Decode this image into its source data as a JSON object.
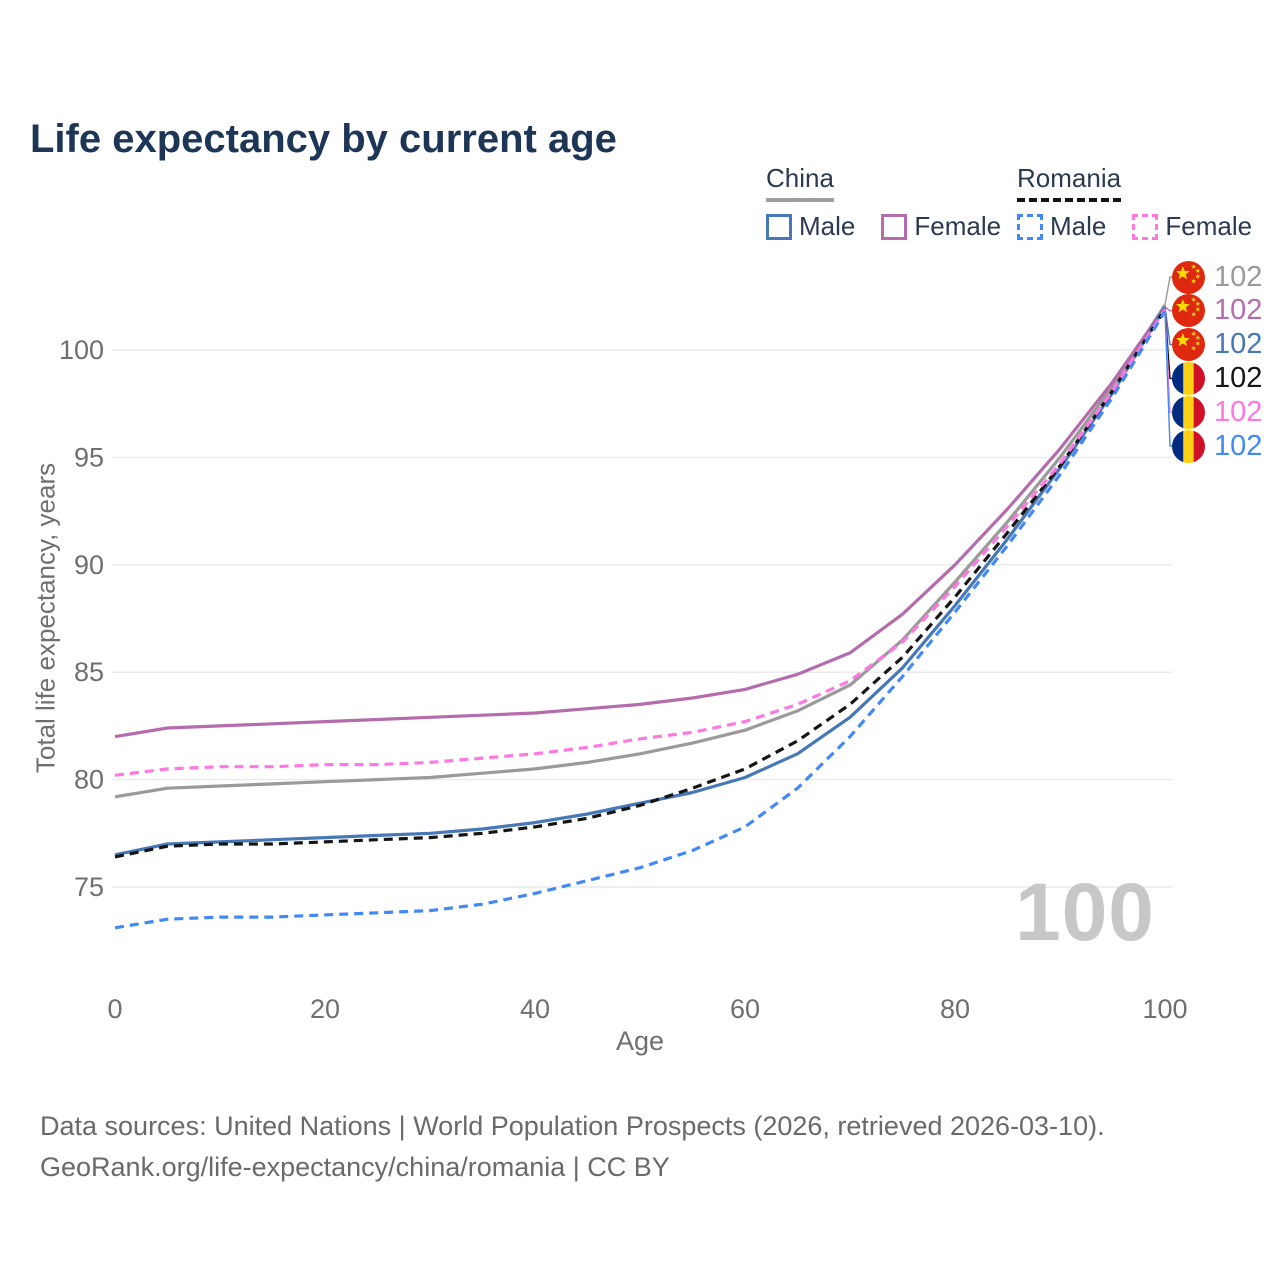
{
  "title": "Life expectancy by current age",
  "watermark_current_age": "100",
  "legend": {
    "groups": [
      {
        "name": "China",
        "line_style": "solid",
        "header_color": "#9e9e9e",
        "items": [
          {
            "label": "Male",
            "color": "#4678b8",
            "dashed": false
          },
          {
            "label": "Female",
            "color": "#b46cac",
            "dashed": false
          }
        ]
      },
      {
        "name": "Romania",
        "line_style": "dashed",
        "header_color": "#141414",
        "items": [
          {
            "label": "Male",
            "color": "#4289f5",
            "dashed": true
          },
          {
            "label": "Female",
            "color": "#ff78e2",
            "dashed": true
          }
        ]
      }
    ]
  },
  "end_labels": [
    {
      "country": "china",
      "value": "102",
      "color": "#9a9a9a"
    },
    {
      "country": "china",
      "value": "102",
      "color": "#b46cac"
    },
    {
      "country": "china",
      "value": "102",
      "color": "#4678b8"
    },
    {
      "country": "romania",
      "value": "102",
      "color": "#151515"
    },
    {
      "country": "romania",
      "value": "102",
      "color": "#ff78e2"
    },
    {
      "country": "romania",
      "value": "102",
      "color": "#4289f5"
    }
  ],
  "chart_data": {
    "type": "line",
    "title": "Life expectancy by current age",
    "xlabel": "Age",
    "ylabel": "Total life expectancy, years",
    "xlim": [
      0,
      100
    ],
    "ylim": [
      72,
      103
    ],
    "xticks": [
      0,
      20,
      40,
      60,
      80,
      100
    ],
    "yticks": [
      75,
      80,
      85,
      90,
      95,
      100
    ],
    "grid": "horizontal",
    "legend_position": "top-right",
    "end_value_label": "102",
    "current_age_indicator": "100",
    "x": [
      0,
      5,
      10,
      15,
      20,
      25,
      30,
      35,
      40,
      45,
      50,
      55,
      60,
      65,
      70,
      75,
      80,
      85,
      90,
      95,
      100
    ],
    "series": [
      {
        "id": "china-total",
        "name": "China",
        "color": "#9a9a9a",
        "dash": "solid",
        "values": [
          79.2,
          79.6,
          79.7,
          79.8,
          79.9,
          80.0,
          80.1,
          80.3,
          80.5,
          80.8,
          81.2,
          81.7,
          82.3,
          83.2,
          84.4,
          86.5,
          89.2,
          92.0,
          95.0,
          98.3,
          102.1
        ]
      },
      {
        "id": "china-female",
        "name": "China Female",
        "color": "#b46cac",
        "dash": "solid",
        "values": [
          82.0,
          82.4,
          82.5,
          82.6,
          82.7,
          82.8,
          82.9,
          83.0,
          83.1,
          83.3,
          83.5,
          83.8,
          84.2,
          84.9,
          85.9,
          87.7,
          90.0,
          92.6,
          95.4,
          98.5,
          102.0
        ]
      },
      {
        "id": "china-male",
        "name": "China Male",
        "color": "#4678b8",
        "dash": "solid",
        "values": [
          76.5,
          77.0,
          77.1,
          77.2,
          77.3,
          77.4,
          77.5,
          77.7,
          78.0,
          78.4,
          78.9,
          79.4,
          80.1,
          81.2,
          82.9,
          85.2,
          88.1,
          91.2,
          94.5,
          98.0,
          102.0
        ]
      },
      {
        "id": "romania-total",
        "name": "Romania",
        "color": "#151515",
        "dash": "dashed",
        "values": [
          76.4,
          76.9,
          77.0,
          77.0,
          77.1,
          77.2,
          77.3,
          77.5,
          77.8,
          78.2,
          78.8,
          79.6,
          80.5,
          81.8,
          83.5,
          85.7,
          88.5,
          91.5,
          94.6,
          98.1,
          101.9
        ]
      },
      {
        "id": "romania-female",
        "name": "Romania Female",
        "color": "#ff78e2",
        "dash": "dashed",
        "values": [
          80.2,
          80.5,
          80.6,
          80.6,
          80.7,
          80.7,
          80.8,
          81.0,
          81.2,
          81.5,
          81.9,
          82.2,
          82.7,
          83.5,
          84.6,
          86.4,
          89.0,
          91.8,
          94.7,
          98.1,
          101.9
        ]
      },
      {
        "id": "romania-male",
        "name": "Romania Male",
        "color": "#4289f5",
        "dash": "dashed",
        "values": [
          73.1,
          73.5,
          73.6,
          73.6,
          73.7,
          73.8,
          73.9,
          74.2,
          74.7,
          75.3,
          75.9,
          76.7,
          77.8,
          79.6,
          82.0,
          84.8,
          87.8,
          90.9,
          94.2,
          97.8,
          101.8
        ]
      }
    ]
  },
  "footer": {
    "line1": "Data sources: United Nations | World Population Prospects (2026, retrieved 2026-03-10).",
    "line2": "GeoRank.org/life-expectancy/china/romania | CC BY"
  }
}
